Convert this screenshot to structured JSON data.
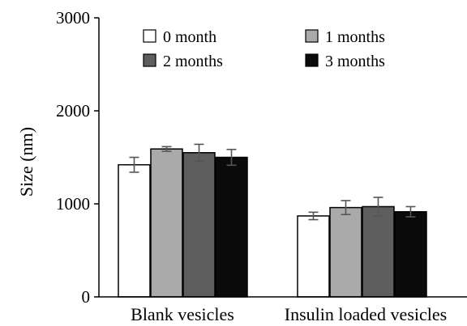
{
  "chart_data": {
    "type": "bar",
    "title": "",
    "xlabel": "",
    "ylabel": "Size (nm)",
    "ylim": [
      0,
      3000
    ],
    "yticks": [
      0,
      1000,
      2000,
      3000
    ],
    "yticks_labels": [
      "0",
      "1000",
      "2000",
      "3000"
    ],
    "categories": [
      "Blank vesicles",
      "Insulin loaded vesicles"
    ],
    "legend_position": "top",
    "grid": false,
    "error_bars": true,
    "series": [
      {
        "name": "0 month",
        "color": "#ffffff",
        "values": [
          1420,
          870
        ],
        "errors": [
          80,
          40
        ]
      },
      {
        "name": "1 months",
        "color": "#aaaaaa",
        "values": [
          1590,
          960
        ],
        "errors": [
          25,
          75
        ]
      },
      {
        "name": "2 months",
        "color": "#5e5e5e",
        "values": [
          1550,
          970
        ],
        "errors": [
          90,
          100
        ]
      },
      {
        "name": "3 months",
        "color": "#0a0a0a",
        "values": [
          1500,
          915
        ],
        "errors": [
          85,
          55
        ]
      }
    ]
  }
}
